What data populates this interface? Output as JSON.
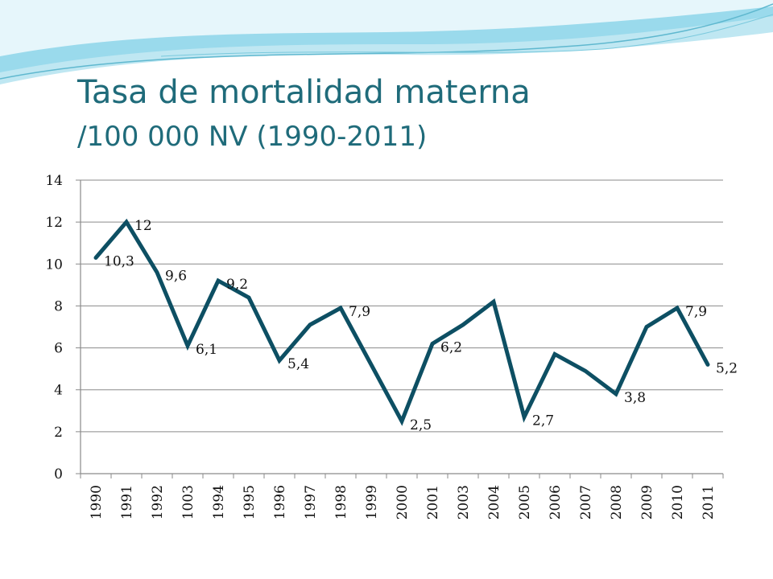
{
  "slide": {
    "title": "Tasa de mortalidad materna",
    "subtitle": "/100 000 NV (1990-2011)",
    "colors": {
      "title": "#1f6b7a",
      "series": "#0d4f63",
      "wave_light": "#bfe7f2",
      "wave_mid": "#7fd0e6"
    }
  },
  "chart_data": {
    "type": "line",
    "categories": [
      "1990",
      "1991",
      "1992",
      "1003",
      "1994",
      "1995",
      "1996",
      "1997",
      "1998",
      "1999",
      "2000",
      "2001",
      "2003",
      "2004",
      "2005",
      "2006",
      "2007",
      "2008",
      "2009",
      "2010",
      "2011"
    ],
    "series": [
      {
        "values": [
          10.3,
          12,
          9.6,
          6.1,
          9.2,
          8.4,
          5.4,
          7.1,
          7.9,
          5.2,
          2.5,
          6.2,
          7.1,
          8.2,
          2.7,
          5.7,
          4.9,
          3.8,
          7.0,
          7.9,
          5.2
        ]
      }
    ],
    "data_labels": [
      {
        "index": 0,
        "text": "10,3"
      },
      {
        "index": 1,
        "text": "12"
      },
      {
        "index": 2,
        "text": "9,6"
      },
      {
        "index": 3,
        "text": "6,1"
      },
      {
        "index": 4,
        "text": "9,2"
      },
      {
        "index": 6,
        "text": "5,4"
      },
      {
        "index": 8,
        "text": "7,9"
      },
      {
        "index": 10,
        "text": "2,5"
      },
      {
        "index": 11,
        "text": "6,2"
      },
      {
        "index": 14,
        "text": "2,7"
      },
      {
        "index": 17,
        "text": "3,8"
      },
      {
        "index": 19,
        "text": "7,9"
      },
      {
        "index": 20,
        "text": "5,2"
      }
    ],
    "yticks": [
      0,
      2,
      4,
      6,
      8,
      10,
      12,
      14
    ],
    "ylim": [
      0,
      14
    ],
    "grid": true,
    "legend": "none"
  }
}
